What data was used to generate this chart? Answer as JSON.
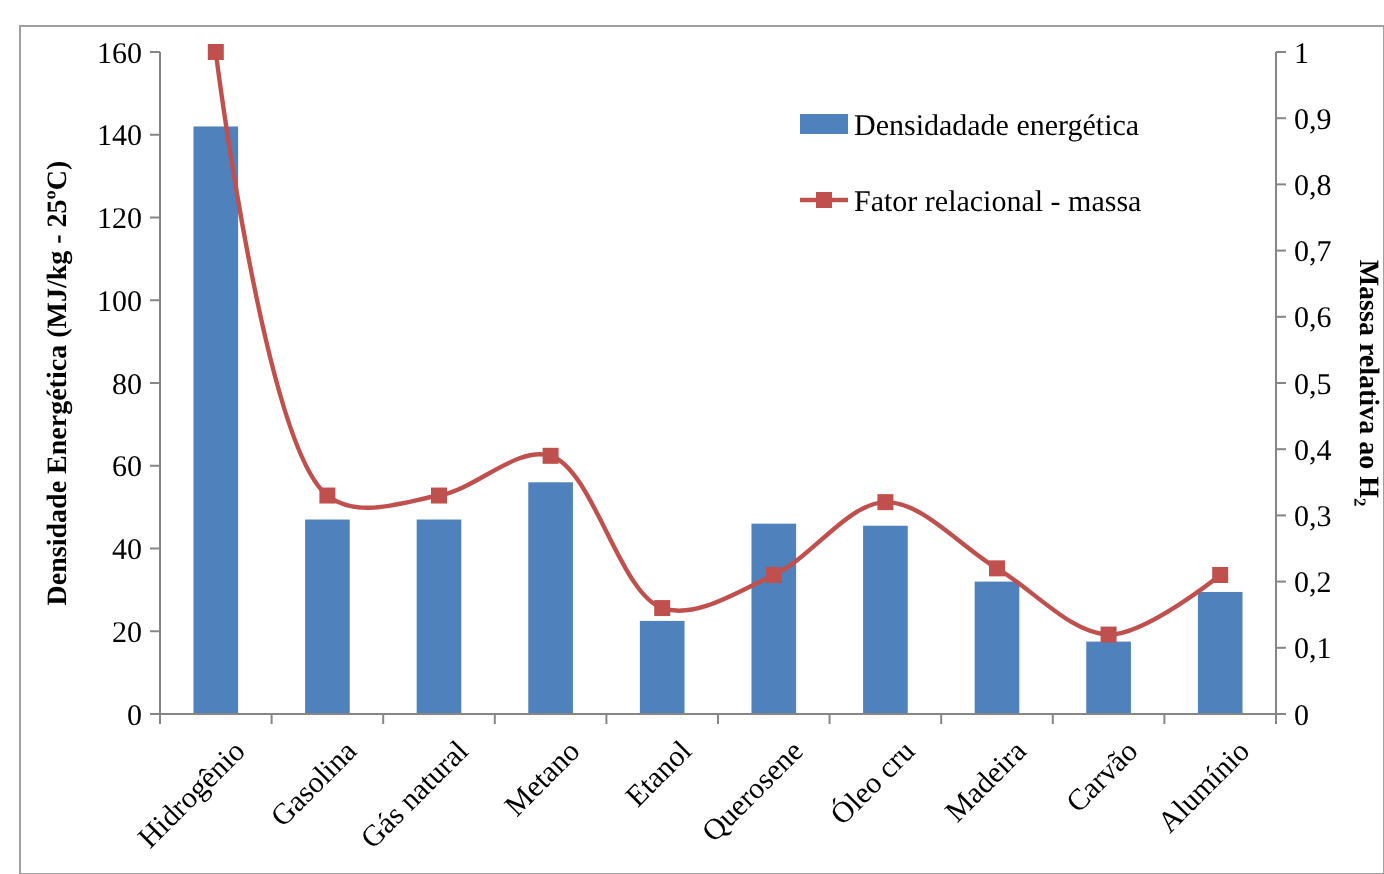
{
  "chart_data": {
    "type": "bar",
    "xlabel": null,
    "ylabel": "Densidade Energética (MJ/kg - 25ºC)",
    "y2label": "Massa relativa ao H₂",
    "categories": [
      "Hidrogênio",
      "Gasolina",
      "Gás natural",
      "Metano",
      "Etanol",
      "Querosene",
      "Óleo cru",
      "Madeira",
      "Carvão",
      "Alumínio"
    ],
    "series": [
      {
        "name": "Densidadade energética",
        "color": "#4f81bd",
        "values": [
          142,
          47,
          47,
          56,
          22.5,
          46,
          45.5,
          32,
          17.5,
          29.5
        ]
      },
      {
        "name": "Fator relacional - massa",
        "type": "line",
        "axis": "y2",
        "color": "#c0504d",
        "marker": "square",
        "values": [
          1,
          0.33,
          0.33,
          0.39,
          0.16,
          0.21,
          0.32,
          0.22,
          0.12,
          0.21
        ]
      }
    ],
    "ylim": [
      0,
      160
    ],
    "yticks": [
      0,
      20,
      40,
      60,
      80,
      100,
      120,
      140,
      160
    ],
    "y2lim": [
      0,
      1
    ],
    "y2ticks": [
      0,
      {
        "value": 0.1,
        "label": "0,1"
      },
      {
        "value": 0.2,
        "label": "0,2"
      },
      {
        "value": 0.3,
        "label": "0,3"
      },
      {
        "value": 0.4,
        "label": "0,4"
      },
      {
        "value": 0.5,
        "label": "0,5"
      },
      {
        "value": 0.6,
        "label": "0,6"
      },
      {
        "value": 0.7,
        "label": "0,7"
      },
      {
        "value": 0.8,
        "label": "0,8"
      },
      {
        "value": 0.9,
        "label": "0,9"
      },
      1
    ],
    "grid": false,
    "legend": "top right"
  }
}
